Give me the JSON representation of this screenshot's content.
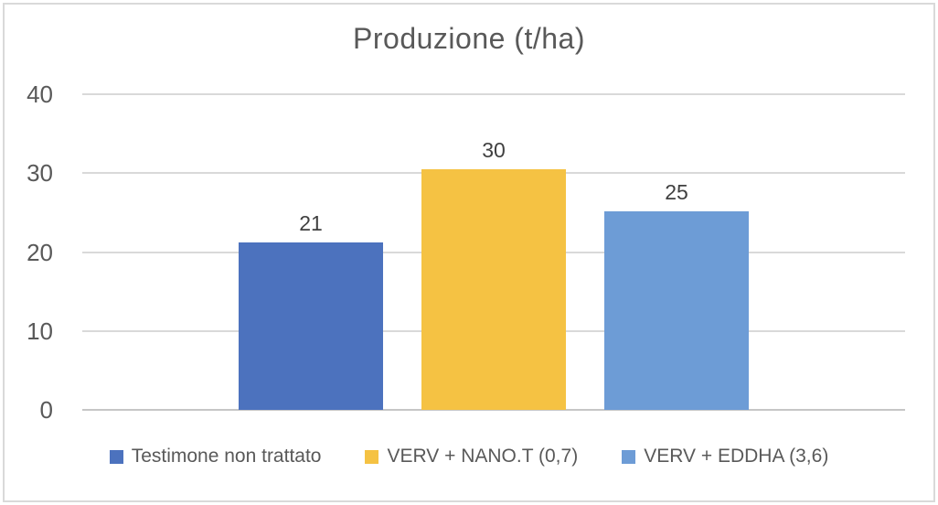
{
  "chart_data": {
    "type": "bar",
    "title": "Produzione (t/ha)",
    "categories": [
      ""
    ],
    "series": [
      {
        "name": "Testimone non trattato",
        "value": 21.2,
        "data_label": "21",
        "color": "#4C72BE"
      },
      {
        "name": "VERV + NANO.T (0,7)",
        "value": 30.5,
        "data_label": "30",
        "color": "#F5C243"
      },
      {
        "name": "VERV + EDDHA (3,6)",
        "value": 25.2,
        "data_label": "25",
        "color": "#6D9CD6"
      }
    ],
    "y_axis": {
      "min": 0,
      "max": 40,
      "ticks": [
        40,
        30,
        20,
        10,
        0
      ]
    },
    "grid": true,
    "legend_position": "bottom"
  },
  "colors": {
    "title_text": "#595959",
    "axis_text": "#595959",
    "data_label_text": "#404040",
    "legend_text": "#595959",
    "gridline": "#D9D9D9",
    "axis_line": "#C6C6C6",
    "frame_border": "#D9D9D9",
    "background": "#FFFFFF"
  }
}
